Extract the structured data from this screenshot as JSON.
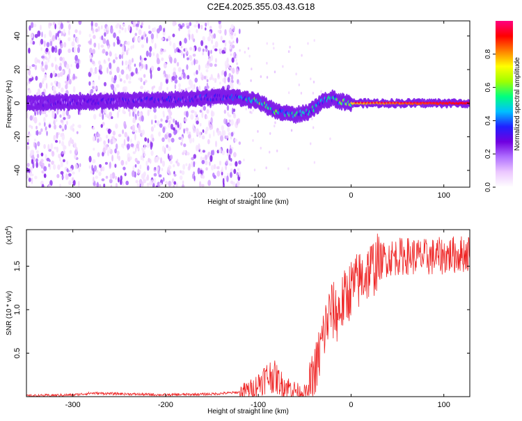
{
  "title": "C2E4.2025.355.03.43.G18",
  "chart_data": [
    {
      "type": "heatmap",
      "title": "C2E4.2025.355.03.43.G18",
      "xlabel": "Height of straight line (km)",
      "ylabel": "Frequency (Hz)",
      "xlim": [
        -350,
        128
      ],
      "ylim": [
        -50,
        49
      ],
      "x_ticks": [
        "-300",
        "-200",
        "-100",
        "0",
        "100"
      ],
      "x_tick_values": [
        -300,
        -200,
        -100,
        0,
        100
      ],
      "y_ticks": [
        "-40",
        "-20",
        "0",
        "20",
        "40"
      ],
      "y_tick_values": [
        -40,
        -20,
        0,
        20,
        40
      ],
      "colorbar": {
        "label": "Normalized spectral amplitude",
        "range": [
          0.0,
          1.0
        ],
        "ticks": [
          "0.0",
          "0.2",
          "0.4",
          "0.6",
          "0.8"
        ],
        "tick_values": [
          0.0,
          0.2,
          0.4,
          0.6,
          0.8
        ],
        "colors": [
          "#ffffff",
          "#ecc8ff",
          "#b070ff",
          "#7000e0",
          "#2020ff",
          "#00c0ff",
          "#00ff80",
          "#a0ff00",
          "#ffff00",
          "#ff8000",
          "#ff0000",
          "#ff0080"
        ]
      },
      "ridge_center": {
        "x": [
          -350,
          -200,
          -130,
          -100,
          -80,
          -60,
          -45,
          -30,
          -20,
          -10,
          0,
          128
        ],
        "y": [
          0,
          2,
          4,
          1,
          -5,
          -7,
          -5,
          1,
          3,
          1,
          0,
          0
        ]
      },
      "ridge_peak_amplitude": {
        "x": [
          -350,
          -130,
          -100,
          -60,
          -20,
          0,
          128
        ],
        "y": [
          0.25,
          0.35,
          0.55,
          0.5,
          0.45,
          0.75,
          0.92
        ]
      },
      "background_noise_extent_x": [
        -350,
        -130
      ]
    },
    {
      "type": "line",
      "xlabel": "Height of straight line (km)",
      "ylabel": "SNR (10 * v/v)",
      "y_multiplier_label": "(x10",
      "y_multiplier_exp": "4",
      "y_multiplier_close": ")",
      "line_color": "#ee2222",
      "xlim": [
        -350,
        128
      ],
      "ylim": [
        0,
        1.92
      ],
      "x_ticks": [
        "-300",
        "-200",
        "-100",
        "0",
        "100"
      ],
      "x_tick_values": [
        -300,
        -200,
        -100,
        0,
        100
      ],
      "y_ticks": [
        "0.5",
        "1.0",
        "1.5"
      ],
      "y_tick_values": [
        0.5,
        1.0,
        1.5
      ],
      "series": [
        {
          "x": [
            -350,
            -300,
            -280,
            -200,
            -150,
            -120,
            -105,
            -95,
            -85,
            -75,
            -65,
            -55,
            -45,
            -38,
            -30,
            -22,
            -15,
            -8,
            0,
            10,
            20,
            30,
            40,
            60,
            80,
            100,
            128
          ],
          "y": [
            0.01,
            0.02,
            0.04,
            0.02,
            0.03,
            0.05,
            0.1,
            0.2,
            0.25,
            0.15,
            0.1,
            0.05,
            0.05,
            0.3,
            0.7,
            1.0,
            0.95,
            1.1,
            1.25,
            1.35,
            1.45,
            1.55,
            1.6,
            1.62,
            1.6,
            1.62,
            1.65
          ]
        }
      ]
    }
  ]
}
